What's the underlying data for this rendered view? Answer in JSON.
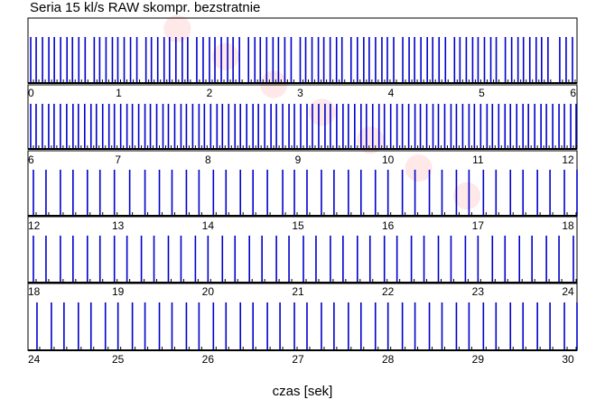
{
  "title": "Seria 15 kl/s RAW skompr. bezstratnie",
  "chart_data": {
    "type": "timeline",
    "title": "Seria 15 kl/s RAW skompr. bezstratnie",
    "xlabel": "czas [sek]",
    "series_color": "#0000cc",
    "small_tick_color": "#000000",
    "rows": [
      {
        "xlim": [
          0,
          6.05
        ],
        "tick_labels": [
          "0",
          "1",
          "2",
          "3",
          "4",
          "5",
          "6"
        ],
        "events": [
          0.03,
          0.09,
          0.16,
          0.23,
          0.29,
          0.36,
          0.43,
          0.49,
          0.56,
          0.63,
          0.73,
          0.79,
          0.86,
          0.93,
          0.99,
          1.06,
          1.13,
          1.2,
          1.3,
          1.36,
          1.43,
          1.5,
          1.56,
          1.63,
          1.7,
          1.76,
          1.86,
          1.93,
          2.0,
          2.06,
          2.13,
          2.2,
          2.26,
          2.33,
          2.43,
          2.5,
          2.56,
          2.63,
          2.7,
          2.76,
          2.83,
          2.9,
          3.0,
          3.06,
          3.13,
          3.2,
          3.26,
          3.33,
          3.4,
          3.46,
          3.56,
          3.63,
          3.7,
          3.76,
          3.83,
          3.9,
          3.96,
          4.03,
          4.13,
          4.2,
          4.26,
          4.33,
          4.4,
          4.46,
          4.53,
          4.6,
          4.7,
          4.76,
          4.83,
          4.9,
          4.96,
          5.03,
          5.1,
          5.16,
          5.26,
          5.33,
          5.4,
          5.46,
          5.53,
          5.6,
          5.66,
          5.73,
          5.86,
          5.93,
          6.0
        ]
      },
      {
        "xlim": [
          6.0,
          12.1
        ],
        "tick_labels": [
          "6",
          "7",
          "8",
          "9",
          "10",
          "11",
          "12"
        ],
        "events": [
          6.03,
          6.09,
          6.16,
          6.23,
          6.29,
          6.36,
          6.43,
          6.5,
          6.56,
          6.63,
          6.7,
          6.76,
          6.83,
          6.9,
          6.96,
          7.03,
          7.1,
          7.16,
          7.23,
          7.3,
          7.36,
          7.43,
          7.5,
          7.56,
          7.63,
          7.7,
          7.76,
          7.83,
          7.9,
          7.96,
          8.03,
          8.1,
          8.16,
          8.23,
          8.3,
          8.36,
          8.43,
          8.5,
          8.56,
          8.63,
          8.7,
          8.76,
          8.83,
          8.9,
          8.96,
          9.03,
          9.1,
          9.16,
          9.23,
          9.3,
          9.36,
          9.43,
          9.5,
          9.56,
          9.63,
          9.7,
          9.76,
          9.83,
          9.9,
          9.96,
          10.03,
          10.1,
          10.16,
          10.23,
          10.3,
          10.36,
          10.43,
          10.5,
          10.56,
          10.63,
          10.7,
          10.76,
          10.83,
          10.9,
          10.96,
          11.03,
          11.1,
          11.16,
          11.23,
          11.3,
          11.36,
          11.43,
          11.5,
          11.56,
          11.63,
          11.7,
          11.76,
          11.83,
          11.9,
          11.96,
          12.03,
          12.09
        ]
      },
      {
        "xlim": [
          12.0,
          18.1
        ],
        "tick_labels": [
          "12",
          "13",
          "14",
          "15",
          "16",
          "17",
          "18"
        ],
        "events": [
          12.06,
          12.2,
          12.36,
          12.5,
          12.66,
          12.8,
          12.96,
          13.13,
          13.3,
          13.46,
          13.6,
          13.76,
          13.9,
          14.06,
          14.2,
          14.36,
          14.5,
          14.66,
          14.83,
          14.96,
          15.1,
          15.26,
          15.4,
          15.56,
          15.7,
          15.86,
          16.0,
          16.16,
          16.3,
          16.46,
          16.6,
          16.76,
          16.9,
          17.06,
          17.2,
          17.36,
          17.5,
          17.66,
          17.8,
          17.96,
          18.1
        ]
      },
      {
        "xlim": [
          18.0,
          24.1
        ],
        "tick_labels": [
          "18",
          "19",
          "20",
          "21",
          "22",
          "23",
          "24"
        ],
        "events": [
          18.06,
          18.2,
          18.36,
          18.5,
          18.66,
          18.8,
          18.96,
          19.1,
          19.26,
          19.4,
          19.56,
          19.7,
          19.86,
          20.0,
          20.16,
          20.3,
          20.46,
          20.6,
          20.76,
          20.9,
          21.06,
          21.2,
          21.36,
          21.5,
          21.66,
          21.8,
          21.96,
          22.1,
          22.26,
          22.4,
          22.56,
          22.7,
          22.86,
          23.0,
          23.16,
          23.3,
          23.46,
          23.6,
          23.76,
          23.9,
          24.06
        ]
      },
      {
        "xlim": [
          24.0,
          30.1
        ],
        "tick_labels": [
          "24",
          "25",
          "26",
          "27",
          "28",
          "29",
          "30"
        ],
        "events": [
          24.1,
          24.26,
          24.4,
          24.56,
          24.7,
          24.86,
          25.0,
          25.16,
          25.3,
          25.46,
          25.6,
          25.76,
          25.9,
          26.06,
          26.2,
          26.36,
          26.5,
          26.66,
          26.8,
          26.96,
          27.1,
          27.26,
          27.4,
          27.56,
          27.7,
          27.86,
          28.0,
          28.16,
          28.3,
          28.46,
          28.6,
          28.76,
          28.9,
          29.06,
          29.2,
          29.36,
          29.5,
          29.66,
          29.8,
          29.96,
          30.1
        ]
      }
    ]
  }
}
